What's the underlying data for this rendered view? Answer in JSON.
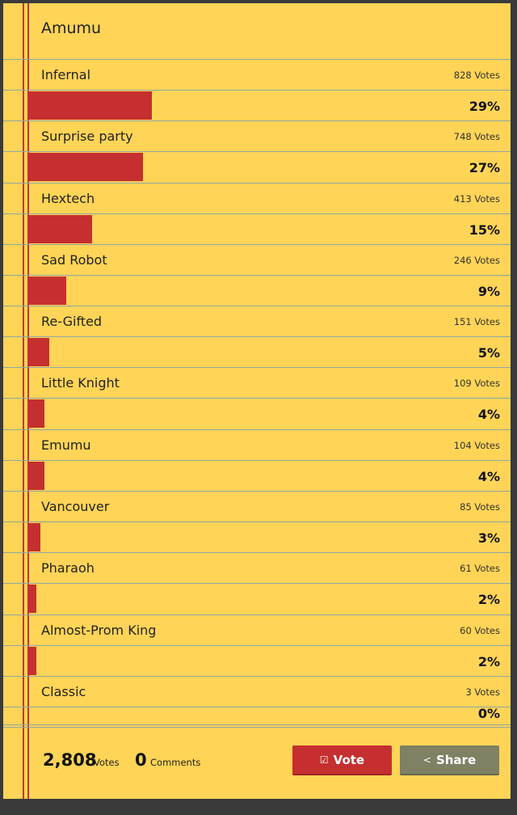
{
  "poll": {
    "title": "Amumu",
    "options": [
      {
        "label": "Infernal",
        "votes": "828 Votes",
        "percent": "29%",
        "share": 0.29
      },
      {
        "label": "Surprise party",
        "votes": "748 Votes",
        "percent": "27%",
        "share": 0.27
      },
      {
        "label": "Hextech",
        "votes": "413 Votes",
        "percent": "15%",
        "share": 0.15
      },
      {
        "label": "Sad Robot",
        "votes": "246 Votes",
        "percent": "9%",
        "share": 0.09
      },
      {
        "label": "Re-Gifted",
        "votes": "151 Votes",
        "percent": "5%",
        "share": 0.05
      },
      {
        "label": "Little Knight",
        "votes": "109 Votes",
        "percent": "4%",
        "share": 0.04
      },
      {
        "label": "Emumu",
        "votes": "104 Votes",
        "percent": "4%",
        "share": 0.04
      },
      {
        "label": "Vancouver",
        "votes": "85 Votes",
        "percent": "3%",
        "share": 0.03
      },
      {
        "label": "Pharaoh",
        "votes": "61 Votes",
        "percent": "2%",
        "share": 0.02
      },
      {
        "label": "Almost-Prom King",
        "votes": "60 Votes",
        "percent": "2%",
        "share": 0.02
      },
      {
        "label": "Classic",
        "votes": "3 Votes",
        "percent": "0%",
        "share": 0.0
      }
    ],
    "total_votes": "2,808",
    "total_votes_label": "Votes",
    "comments_count": "0",
    "comments_label": "Comments"
  },
  "actions": {
    "vote_label": "Vote",
    "vote_icon": "checkbox-icon",
    "share_label": "Share",
    "share_icon": "share-icon"
  },
  "colors": {
    "paper": "#ffd457",
    "bar": "#c62f2f",
    "vote_button": "#c62f2f",
    "share_button": "#7f8064",
    "margin_line": "#c0392b"
  }
}
